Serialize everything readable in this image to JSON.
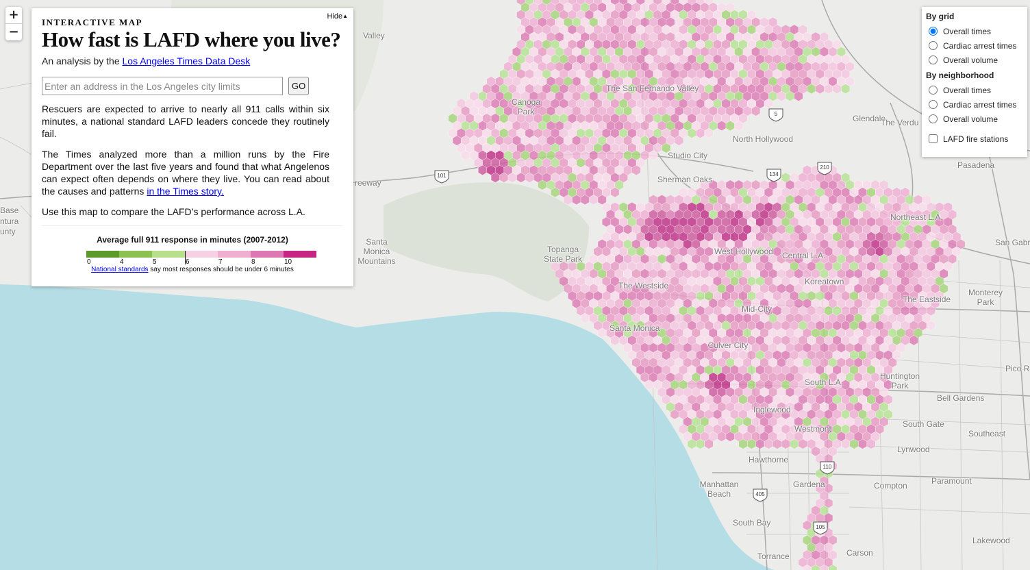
{
  "panel": {
    "hide_label": "Hide",
    "kicker": "INTERACTIVE MAP",
    "headline": "How fast is LAFD where you live?",
    "byline_prefix": "An analysis by the ",
    "byline_link": "Los Angeles Times Data Desk",
    "address_placeholder": "Enter an address in the Los Angeles city limits",
    "go_label": "GO",
    "para1": "Rescuers are expected to arrive to nearly all 911 calls within six minutes, a national standard LAFD leaders concede they routinely fail.",
    "para2_text": "The Times analyzed more than a million runs by the Fire Department over the last five years and found that what Angelenos can expect often depends on where they live. You can read about the causes and patterns ",
    "para2_link": "in the Times story.",
    "para3": "Use this map to compare the LAFD’s performance across L.A.",
    "legend_title": "Average full 911 response in minutes (2007-2012)",
    "legend_ticks": [
      "0",
      "4",
      "5",
      "6",
      "7",
      "8",
      "10"
    ],
    "legend_colors": [
      "#5a9b2b",
      "#8cc152",
      "#b8e08c",
      "#f7d0e3",
      "#efafd0",
      "#dd78b4",
      "#c72584"
    ],
    "legend_note_link": "National standards",
    "legend_note_text": " say most responses should be under 6 minutes"
  },
  "zoom": {
    "in": "+",
    "out": "−"
  },
  "layers": {
    "grid_title": "By grid",
    "grid_options": [
      "Overall times",
      "Cardiac arrest times",
      "Overall volume"
    ],
    "grid_selected": "Overall times",
    "neighborhood_title": "By neighborhood",
    "neighborhood_options": [
      "Overall times",
      "Cardiac arrest times",
      "Overall volume"
    ],
    "stations_label": "LAFD fire stations",
    "stations_checked": false
  },
  "map": {
    "ocean_color": "#b5dde5",
    "land_color": "#ececea",
    "park_color": "#dadfd4",
    "labels": [
      "Valley",
      "The San Fernando Valley",
      "Canoga Park",
      "North Hollywood",
      "Glendale",
      "The Verdu",
      "Pasadena",
      "Northeast L.A.",
      "San Gabri",
      "Monterey Park",
      "The Eastside",
      "Santa Monica Mountains",
      "Topanga State Park",
      "The Westside",
      "West Hollywood",
      "Central L.A.",
      "Koreatown",
      "Mid-City",
      "Santa Monica",
      "Culver City",
      "South L.A.",
      "Huntington Park",
      "Bell Gardens",
      "Pico R",
      "South Gate",
      "Southeast",
      "Inglewood",
      "Westmont",
      "Lynwood",
      "Hawthorne",
      "Gardena",
      "Compton",
      "Paramount",
      "Manhattan Beach",
      "South Bay",
      "Torrance",
      "Carson",
      "Lakewood",
      "Base",
      "ntura",
      "unty",
      "reeway",
      "Studio City",
      "Sherman Oaks"
    ],
    "highway_shields": [
      "101",
      "5",
      "134",
      "110",
      "405",
      "105",
      "210"
    ]
  }
}
